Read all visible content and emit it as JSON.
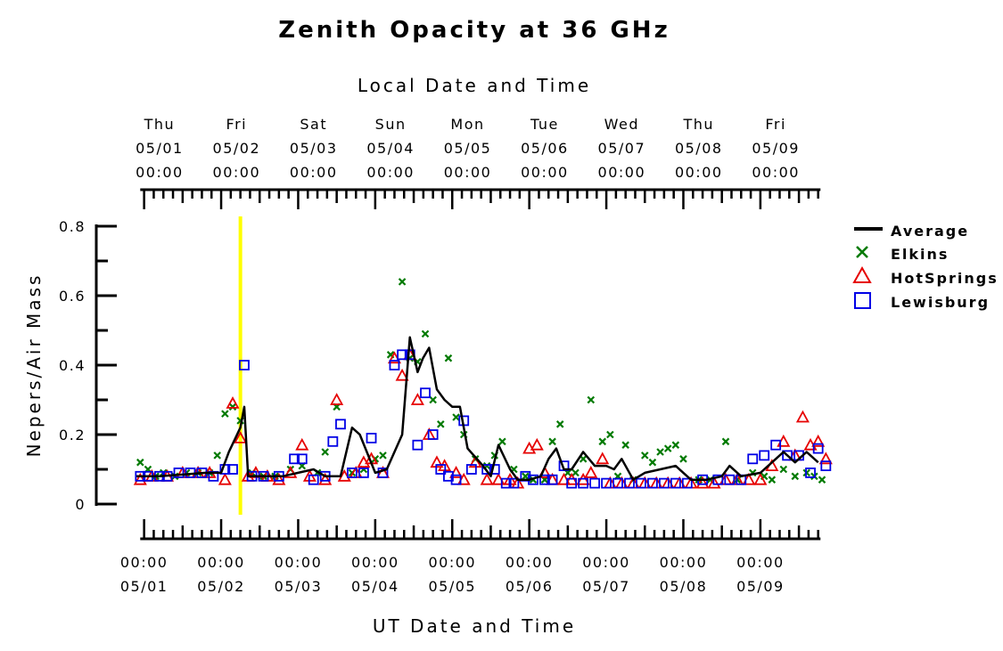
{
  "chart_data": {
    "type": "line",
    "title": "Zenith Opacity at 36 GHz",
    "top_axis_label": "Local Date and Time",
    "xlabel": "UT Date and Time",
    "ylabel": "Nepers/Air Mass",
    "ylim": [
      0,
      0.8
    ],
    "yticks": [
      "0",
      "0.2",
      "0.4",
      "0.6",
      "0.8"
    ],
    "xlim_days": [
      -0.1,
      8.8
    ],
    "bottom_ticks": [
      {
        "time": "00:00",
        "date": "05/01"
      },
      {
        "time": "00:00",
        "date": "05/02"
      },
      {
        "time": "00:00",
        "date": "05/03"
      },
      {
        "time": "00:00",
        "date": "05/04"
      },
      {
        "time": "00:00",
        "date": "05/05"
      },
      {
        "time": "00:00",
        "date": "05/06"
      },
      {
        "time": "00:00",
        "date": "05/07"
      },
      {
        "time": "00:00",
        "date": "05/08"
      },
      {
        "time": "00:00",
        "date": "05/09"
      }
    ],
    "top_ticks": [
      {
        "day": "Thu",
        "date": "05/01",
        "time": "00:00"
      },
      {
        "day": "Fri",
        "date": "05/02",
        "time": "00:00"
      },
      {
        "day": "Sat",
        "date": "05/03",
        "time": "00:00"
      },
      {
        "day": "Sun",
        "date": "05/04",
        "time": "00:00"
      },
      {
        "day": "Mon",
        "date": "05/05",
        "time": "00:00"
      },
      {
        "day": "Tue",
        "date": "05/06",
        "time": "00:00"
      },
      {
        "day": "Wed",
        "date": "05/07",
        "time": "00:00"
      },
      {
        "day": "Thu",
        "date": "05/08",
        "time": "00:00"
      },
      {
        "day": "Fri",
        "date": "05/09",
        "time": "00:00"
      }
    ],
    "marker_line": {
      "x": 1.25,
      "color": "#ffff00"
    },
    "legend": {
      "placement": "right"
    },
    "series": [
      {
        "name": "Average",
        "style": "line",
        "color": "#000000",
        "points": [
          [
            -0.1,
            0.08
          ],
          [
            0.2,
            0.08
          ],
          [
            0.5,
            0.085
          ],
          [
            0.8,
            0.09
          ],
          [
            1.0,
            0.09
          ],
          [
            1.1,
            0.15
          ],
          [
            1.25,
            0.22
          ],
          [
            1.3,
            0.28
          ],
          [
            1.35,
            0.08
          ],
          [
            1.5,
            0.08
          ],
          [
            1.8,
            0.08
          ],
          [
            2.0,
            0.09
          ],
          [
            2.2,
            0.1
          ],
          [
            2.35,
            0.08
          ],
          [
            2.55,
            0.08
          ],
          [
            2.7,
            0.22
          ],
          [
            2.8,
            0.2
          ],
          [
            3.0,
            0.09
          ],
          [
            3.15,
            0.1
          ],
          [
            3.35,
            0.2
          ],
          [
            3.45,
            0.48
          ],
          [
            3.55,
            0.38
          ],
          [
            3.62,
            0.42
          ],
          [
            3.7,
            0.45
          ],
          [
            3.8,
            0.33
          ],
          [
            3.9,
            0.3
          ],
          [
            4.0,
            0.28
          ],
          [
            4.1,
            0.28
          ],
          [
            4.2,
            0.16
          ],
          [
            4.4,
            0.11
          ],
          [
            4.5,
            0.08
          ],
          [
            4.6,
            0.17
          ],
          [
            4.75,
            0.1
          ],
          [
            4.85,
            0.07
          ],
          [
            5.0,
            0.07
          ],
          [
            5.15,
            0.08
          ],
          [
            5.25,
            0.13
          ],
          [
            5.35,
            0.16
          ],
          [
            5.45,
            0.1
          ],
          [
            5.55,
            0.1
          ],
          [
            5.7,
            0.15
          ],
          [
            5.85,
            0.11
          ],
          [
            6.0,
            0.11
          ],
          [
            6.1,
            0.1
          ],
          [
            6.2,
            0.13
          ],
          [
            6.35,
            0.07
          ],
          [
            6.5,
            0.09
          ],
          [
            6.7,
            0.1
          ],
          [
            6.9,
            0.11
          ],
          [
            7.1,
            0.07
          ],
          [
            7.3,
            0.07
          ],
          [
            7.5,
            0.08
          ],
          [
            7.6,
            0.11
          ],
          [
            7.75,
            0.08
          ],
          [
            8.0,
            0.09
          ],
          [
            8.2,
            0.13
          ],
          [
            8.3,
            0.15
          ],
          [
            8.45,
            0.12
          ],
          [
            8.6,
            0.15
          ],
          [
            8.75,
            0.12
          ]
        ]
      },
      {
        "name": "Elkins",
        "style": "x",
        "color": "#007a00",
        "points": [
          [
            -0.05,
            0.12
          ],
          [
            0.05,
            0.1
          ],
          [
            0.15,
            0.08
          ],
          [
            0.25,
            0.09
          ],
          [
            0.4,
            0.08
          ],
          [
            0.55,
            0.09
          ],
          [
            0.7,
            0.09
          ],
          [
            0.85,
            0.09
          ],
          [
            0.95,
            0.14
          ],
          [
            1.05,
            0.26
          ],
          [
            1.15,
            0.28
          ],
          [
            1.25,
            0.24
          ],
          [
            1.4,
            0.09
          ],
          [
            1.55,
            0.08
          ],
          [
            1.7,
            0.08
          ],
          [
            1.9,
            0.1
          ],
          [
            2.05,
            0.11
          ],
          [
            2.25,
            0.09
          ],
          [
            2.35,
            0.15
          ],
          [
            2.5,
            0.28
          ],
          [
            2.7,
            0.09
          ],
          [
            2.85,
            0.1
          ],
          [
            3.0,
            0.13
          ],
          [
            3.1,
            0.14
          ],
          [
            3.2,
            0.43
          ],
          [
            3.35,
            0.64
          ],
          [
            3.45,
            0.42
          ],
          [
            3.55,
            0.41
          ],
          [
            3.65,
            0.49
          ],
          [
            3.75,
            0.3
          ],
          [
            3.85,
            0.23
          ],
          [
            3.95,
            0.42
          ],
          [
            4.05,
            0.25
          ],
          [
            4.15,
            0.2
          ],
          [
            4.3,
            0.13
          ],
          [
            4.45,
            0.11
          ],
          [
            4.55,
            0.14
          ],
          [
            4.65,
            0.18
          ],
          [
            4.8,
            0.1
          ],
          [
            4.95,
            0.08
          ],
          [
            5.05,
            0.07
          ],
          [
            5.2,
            0.07
          ],
          [
            5.3,
            0.18
          ],
          [
            5.4,
            0.23
          ],
          [
            5.5,
            0.09
          ],
          [
            5.6,
            0.09
          ],
          [
            5.7,
            0.13
          ],
          [
            5.8,
            0.3
          ],
          [
            5.95,
            0.18
          ],
          [
            6.05,
            0.2
          ],
          [
            6.15,
            0.08
          ],
          [
            6.25,
            0.17
          ],
          [
            6.35,
            0.07
          ],
          [
            6.5,
            0.14
          ],
          [
            6.6,
            0.12
          ],
          [
            6.7,
            0.15
          ],
          [
            6.8,
            0.16
          ],
          [
            6.9,
            0.17
          ],
          [
            7.0,
            0.13
          ],
          [
            7.2,
            0.07
          ],
          [
            7.35,
            0.07
          ],
          [
            7.55,
            0.18
          ],
          [
            7.7,
            0.07
          ],
          [
            7.9,
            0.09
          ],
          [
            8.05,
            0.08
          ],
          [
            8.15,
            0.07
          ],
          [
            8.3,
            0.1
          ],
          [
            8.45,
            0.08
          ],
          [
            8.6,
            0.09
          ],
          [
            8.7,
            0.08
          ],
          [
            8.8,
            0.07
          ]
        ]
      },
      {
        "name": "HotSprings",
        "style": "triangle",
        "color": "#e60000",
        "points": [
          [
            -0.05,
            0.07
          ],
          [
            0.1,
            0.08
          ],
          [
            0.3,
            0.08
          ],
          [
            0.5,
            0.09
          ],
          [
            0.7,
            0.09
          ],
          [
            0.85,
            0.09
          ],
          [
            1.05,
            0.07
          ],
          [
            1.15,
            0.29
          ],
          [
            1.25,
            0.19
          ],
          [
            1.35,
            0.08
          ],
          [
            1.45,
            0.09
          ],
          [
            1.6,
            0.08
          ],
          [
            1.75,
            0.07
          ],
          [
            1.9,
            0.09
          ],
          [
            2.05,
            0.17
          ],
          [
            2.15,
            0.08
          ],
          [
            2.35,
            0.07
          ],
          [
            2.5,
            0.3
          ],
          [
            2.6,
            0.08
          ],
          [
            2.75,
            0.09
          ],
          [
            2.85,
            0.12
          ],
          [
            2.95,
            0.13
          ],
          [
            3.1,
            0.09
          ],
          [
            3.25,
            0.42
          ],
          [
            3.35,
            0.37
          ],
          [
            3.45,
            0.43
          ],
          [
            3.55,
            0.3
          ],
          [
            3.7,
            0.2
          ],
          [
            3.8,
            0.12
          ],
          [
            3.9,
            0.11
          ],
          [
            4.05,
            0.09
          ],
          [
            4.15,
            0.07
          ],
          [
            4.3,
            0.12
          ],
          [
            4.45,
            0.07
          ],
          [
            4.6,
            0.07
          ],
          [
            4.75,
            0.07
          ],
          [
            4.85,
            0.06
          ],
          [
            5.0,
            0.16
          ],
          [
            5.1,
            0.17
          ],
          [
            5.2,
            0.09
          ],
          [
            5.3,
            0.07
          ],
          [
            5.45,
            0.07
          ],
          [
            5.55,
            0.07
          ],
          [
            5.7,
            0.07
          ],
          [
            5.8,
            0.09
          ],
          [
            5.95,
            0.13
          ],
          [
            6.05,
            0.06
          ],
          [
            6.2,
            0.06
          ],
          [
            6.35,
            0.06
          ],
          [
            6.5,
            0.06
          ],
          [
            6.65,
            0.06
          ],
          [
            6.8,
            0.06
          ],
          [
            6.95,
            0.06
          ],
          [
            7.1,
            0.06
          ],
          [
            7.25,
            0.06
          ],
          [
            7.4,
            0.06
          ],
          [
            7.55,
            0.07
          ],
          [
            7.7,
            0.07
          ],
          [
            7.85,
            0.07
          ],
          [
            8.0,
            0.07
          ],
          [
            8.15,
            0.11
          ],
          [
            8.3,
            0.18
          ],
          [
            8.45,
            0.14
          ],
          [
            8.55,
            0.25
          ],
          [
            8.65,
            0.17
          ],
          [
            8.75,
            0.18
          ],
          [
            8.85,
            0.13
          ]
        ]
      },
      {
        "name": "Lewisburg",
        "style": "square",
        "color": "#0000e6",
        "points": [
          [
            -0.05,
            0.08
          ],
          [
            0.05,
            0.08
          ],
          [
            0.2,
            0.08
          ],
          [
            0.3,
            0.08
          ],
          [
            0.45,
            0.09
          ],
          [
            0.6,
            0.09
          ],
          [
            0.75,
            0.09
          ],
          [
            0.9,
            0.08
          ],
          [
            1.05,
            0.1
          ],
          [
            1.15,
            0.1
          ],
          [
            1.3,
            0.4
          ],
          [
            1.4,
            0.08
          ],
          [
            1.55,
            0.08
          ],
          [
            1.75,
            0.08
          ],
          [
            1.95,
            0.13
          ],
          [
            2.05,
            0.13
          ],
          [
            2.2,
            0.07
          ],
          [
            2.35,
            0.08
          ],
          [
            2.45,
            0.18
          ],
          [
            2.55,
            0.23
          ],
          [
            2.7,
            0.09
          ],
          [
            2.85,
            0.09
          ],
          [
            2.95,
            0.19
          ],
          [
            3.1,
            0.09
          ],
          [
            3.25,
            0.4
          ],
          [
            3.35,
            0.43
          ],
          [
            3.45,
            0.43
          ],
          [
            3.55,
            0.17
          ],
          [
            3.65,
            0.32
          ],
          [
            3.75,
            0.2
          ],
          [
            3.85,
            0.1
          ],
          [
            3.95,
            0.08
          ],
          [
            4.05,
            0.07
          ],
          [
            4.15,
            0.24
          ],
          [
            4.25,
            0.1
          ],
          [
            4.45,
            0.1
          ],
          [
            4.55,
            0.1
          ],
          [
            4.7,
            0.06
          ],
          [
            4.8,
            0.06
          ],
          [
            4.95,
            0.08
          ],
          [
            5.05,
            0.07
          ],
          [
            5.2,
            0.07
          ],
          [
            5.3,
            0.07
          ],
          [
            5.45,
            0.11
          ],
          [
            5.55,
            0.06
          ],
          [
            5.7,
            0.06
          ],
          [
            5.85,
            0.06
          ],
          [
            6.0,
            0.06
          ],
          [
            6.15,
            0.06
          ],
          [
            6.3,
            0.06
          ],
          [
            6.45,
            0.06
          ],
          [
            6.6,
            0.06
          ],
          [
            6.75,
            0.06
          ],
          [
            6.9,
            0.06
          ],
          [
            7.05,
            0.06
          ],
          [
            7.25,
            0.07
          ],
          [
            7.45,
            0.07
          ],
          [
            7.6,
            0.07
          ],
          [
            7.75,
            0.07
          ],
          [
            7.9,
            0.13
          ],
          [
            8.05,
            0.14
          ],
          [
            8.2,
            0.17
          ],
          [
            8.35,
            0.14
          ],
          [
            8.5,
            0.14
          ],
          [
            8.65,
            0.09
          ],
          [
            8.75,
            0.16
          ],
          [
            8.85,
            0.11
          ]
        ]
      }
    ]
  }
}
